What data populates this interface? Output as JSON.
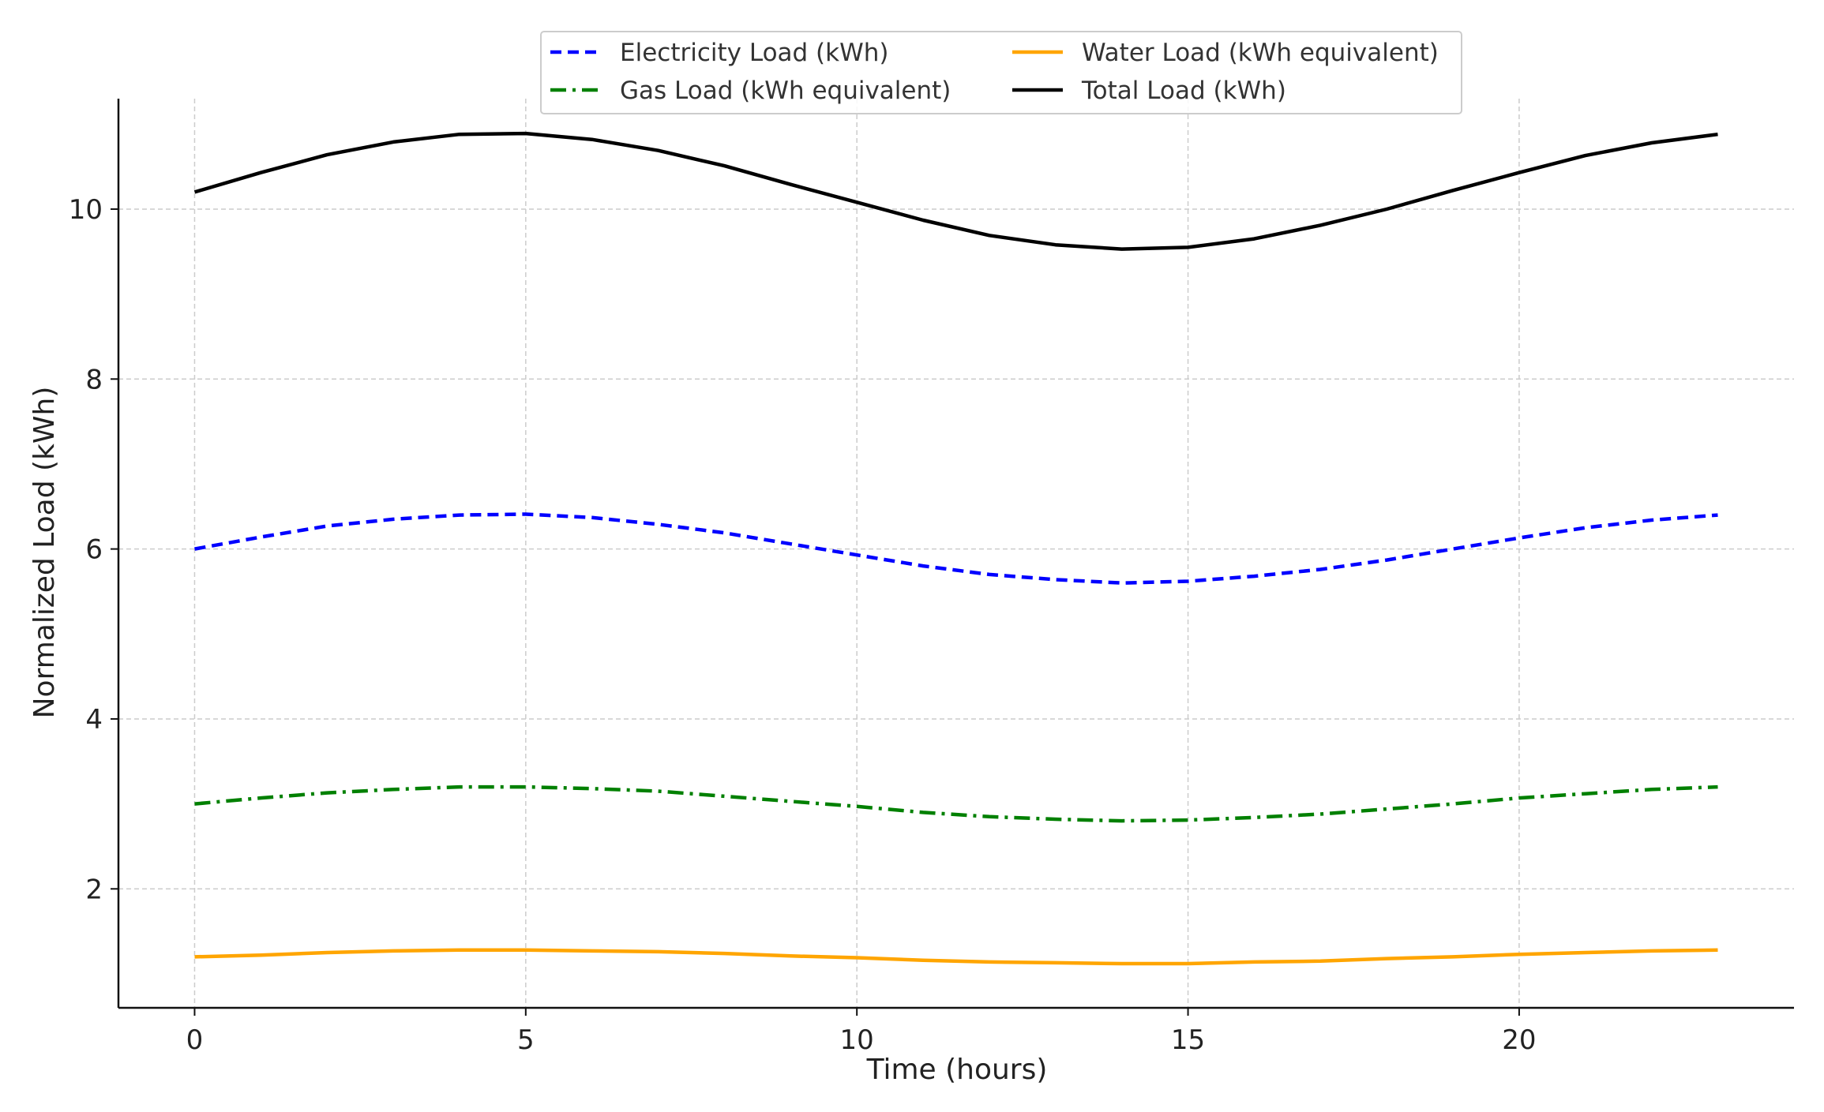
{
  "chart_data": {
    "type": "line",
    "title": "",
    "xlabel": "Time (hours)",
    "ylabel": "Normalized Load (kWh)",
    "xlim": [
      -1.15,
      24.15
    ],
    "ylim": [
      0.6,
      11.3
    ],
    "xticks": [
      0,
      5,
      10,
      15,
      20
    ],
    "yticks": [
      2,
      4,
      6,
      8,
      10
    ],
    "grid": true,
    "legend_position": "top-center",
    "x": [
      0,
      1,
      2,
      3,
      4,
      5,
      6,
      7,
      8,
      9,
      10,
      11,
      12,
      13,
      14,
      15,
      16,
      17,
      18,
      19,
      20,
      21,
      22,
      23
    ],
    "series": [
      {
        "name": "Electricity Load (kWh)",
        "color": "#0000ff",
        "style": "dashed",
        "values": [
          6.0,
          6.14,
          6.27,
          6.35,
          6.4,
          6.41,
          6.37,
          6.29,
          6.19,
          6.06,
          5.93,
          5.8,
          5.7,
          5.64,
          5.6,
          5.62,
          5.68,
          5.76,
          5.87,
          6.0,
          6.13,
          6.25,
          6.34,
          6.4
        ]
      },
      {
        "name": "Gas Load (kWh equivalent)",
        "color": "#008000",
        "style": "dashdot",
        "values": [
          3.0,
          3.07,
          3.13,
          3.17,
          3.2,
          3.2,
          3.18,
          3.15,
          3.09,
          3.03,
          2.97,
          2.9,
          2.85,
          2.82,
          2.8,
          2.81,
          2.84,
          2.88,
          2.94,
          3.0,
          3.07,
          3.12,
          3.17,
          3.2
        ]
      },
      {
        "name": "Water Load (kWh equivalent)",
        "color": "#ffa500",
        "style": "solid",
        "values": [
          1.2,
          1.22,
          1.25,
          1.27,
          1.28,
          1.28,
          1.27,
          1.26,
          1.24,
          1.21,
          1.19,
          1.16,
          1.14,
          1.13,
          1.12,
          1.12,
          1.14,
          1.15,
          1.18,
          1.2,
          1.23,
          1.25,
          1.27,
          1.28
        ]
      },
      {
        "name": "Total Load (kWh)",
        "color": "#000000",
        "style": "solid",
        "values": [
          10.2,
          10.43,
          10.64,
          10.79,
          10.88,
          10.89,
          10.82,
          10.69,
          10.51,
          10.29,
          10.08,
          9.87,
          9.69,
          9.58,
          9.53,
          9.55,
          9.65,
          9.81,
          10.0,
          10.22,
          10.43,
          10.63,
          10.78,
          10.88
        ]
      }
    ],
    "legend_columns": [
      [
        "Electricity Load (kWh)",
        "Gas Load (kWh equivalent)"
      ],
      [
        "Water Load (kWh equivalent)",
        "Total Load (kWh)"
      ]
    ]
  }
}
